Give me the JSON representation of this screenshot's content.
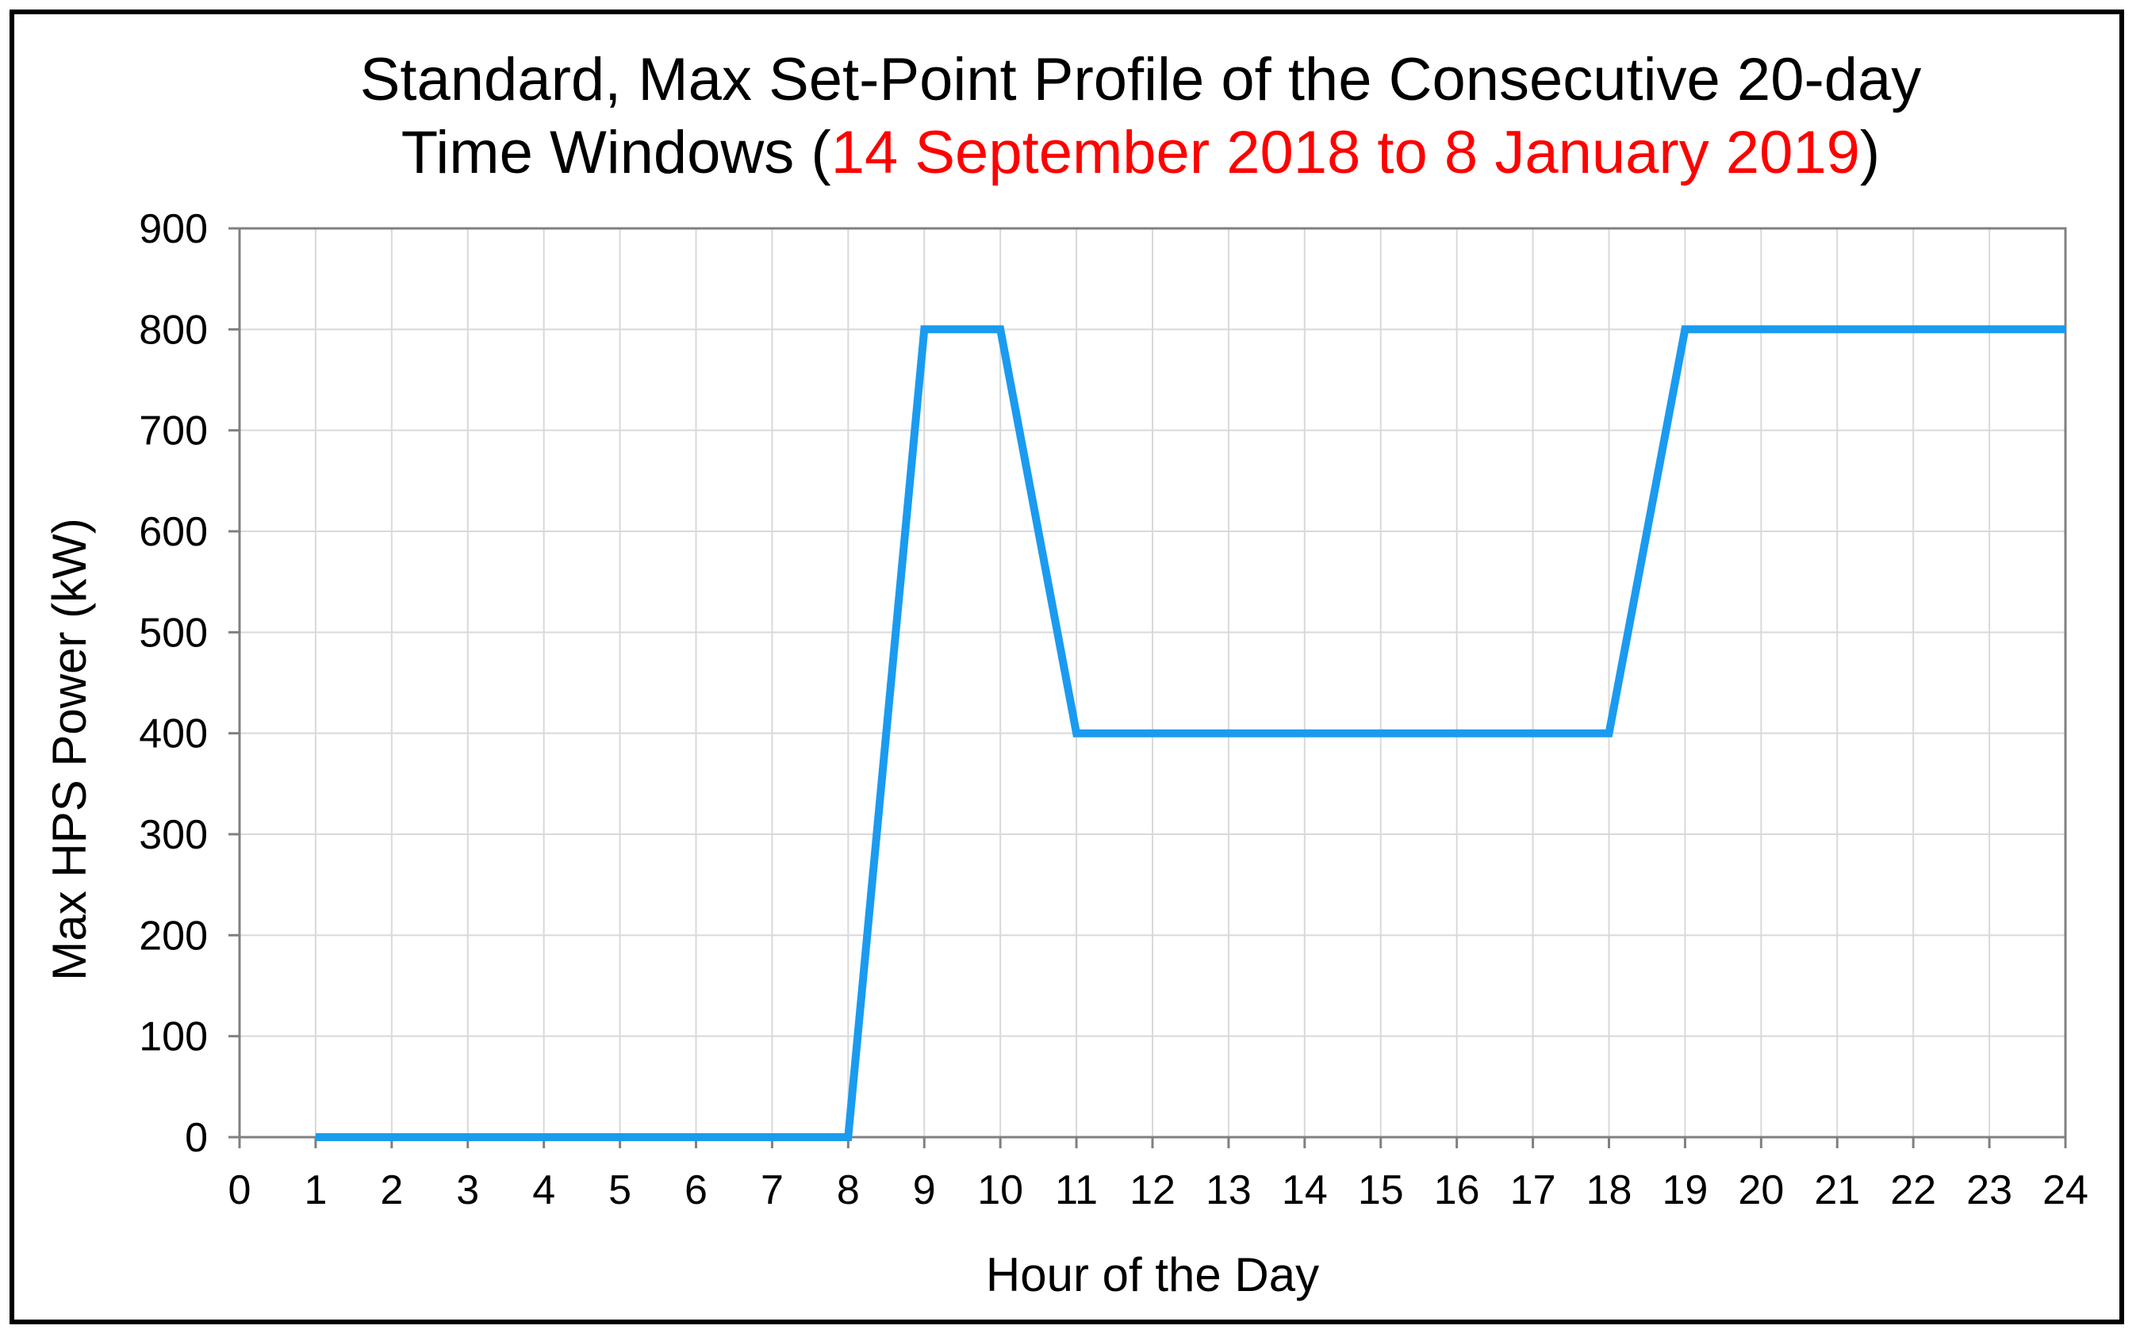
{
  "chart_data": {
    "type": "line",
    "title_main_line1": "Standard, Max Set-Point Profile of the Consecutive 20-day",
    "title_main_line2": "Time Windows (",
    "title_highlight": "14 September 2018 to 8 January 2019",
    "title_close": ")",
    "xlabel": "Hour of the Day",
    "ylabel": "Max HPS Power (kW)",
    "xlim": [
      0,
      24
    ],
    "ylim": [
      0,
      900
    ],
    "x_ticks": [
      "0",
      "1",
      "2",
      "3",
      "4",
      "5",
      "6",
      "7",
      "8",
      "9",
      "10",
      "11",
      "12",
      "13",
      "14",
      "15",
      "16",
      "17",
      "18",
      "19",
      "20",
      "21",
      "22",
      "23",
      "24"
    ],
    "y_ticks": [
      "0",
      "100",
      "200",
      "300",
      "400",
      "500",
      "600",
      "700",
      "800",
      "900"
    ],
    "grid": true,
    "series": [
      {
        "x": [
          1,
          2,
          3,
          4,
          5,
          6,
          7,
          8,
          9,
          10,
          11,
          12,
          13,
          14,
          15,
          16,
          17,
          18,
          19,
          20,
          21,
          22,
          23,
          24
        ],
        "y": [
          0,
          0,
          0,
          0,
          0,
          0,
          0,
          0,
          800,
          800,
          400,
          400,
          400,
          400,
          400,
          400,
          400,
          400,
          800,
          800,
          800,
          800,
          800,
          800
        ],
        "color": "#1a9bf0"
      }
    ],
    "colors": {
      "title_highlight": "#ff0000",
      "grid": "#d9d9d9",
      "axis": "#808080",
      "line": "#1a9bf0"
    }
  }
}
